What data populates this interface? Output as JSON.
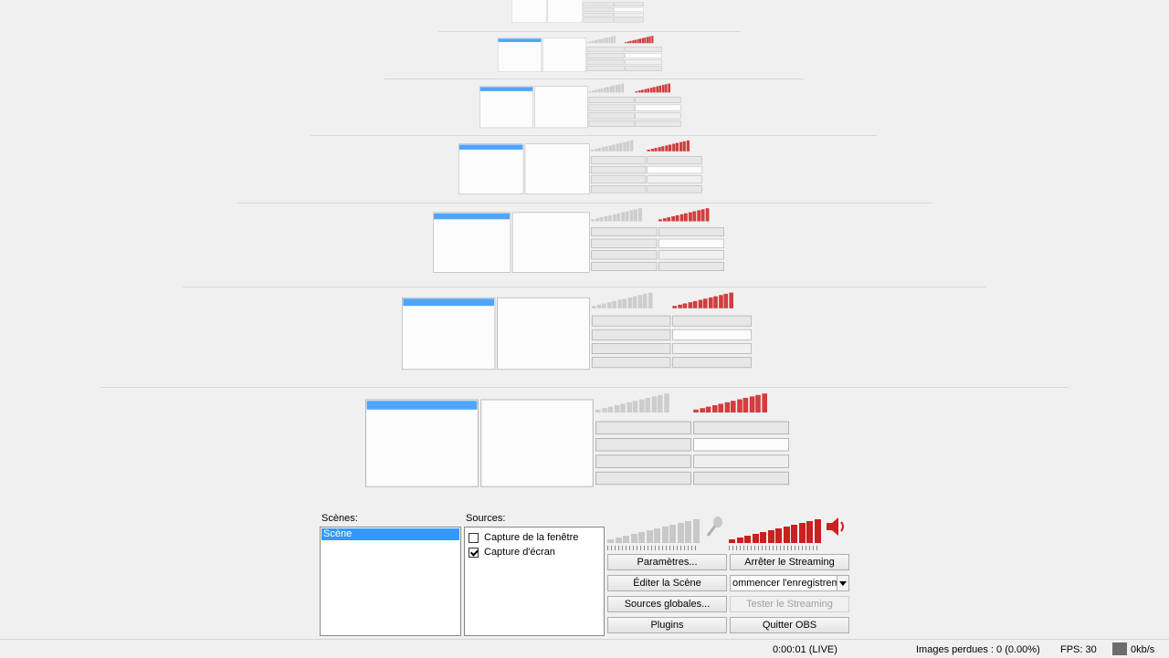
{
  "app": {
    "scenes_label": "Scènes:",
    "sources_label": "Sources:",
    "scenes": [
      "Scène"
    ],
    "sources": [
      {
        "label": "Capture de la fenêtre",
        "checked": false
      },
      {
        "label": "Capture d'écran",
        "checked": true
      }
    ],
    "buttons": {
      "parametres": "Paramètres...",
      "arreter_streaming": "Arrêter le Streaming",
      "editer_scene": "Éditer la Scène",
      "record_combo": "ommencer l'enregistremer",
      "sources_globales": "Sources globales...",
      "tester_streaming": "Tester le Streaming",
      "plugins": "Plugins",
      "quitter": "Quitter OBS"
    },
    "meters": {
      "mic_level": 0.0,
      "desktop_level": 1.0
    }
  },
  "status": {
    "time": "0:00:01 (LIVE)",
    "dropped": "Images perdues : 0 (0.00%)",
    "fps": "FPS: 30",
    "bitrate": "0kb/s"
  },
  "colors": {
    "selection": "#3399ff",
    "meter_red": "#cc1f1f",
    "meter_gray": "#c8c8c8"
  }
}
